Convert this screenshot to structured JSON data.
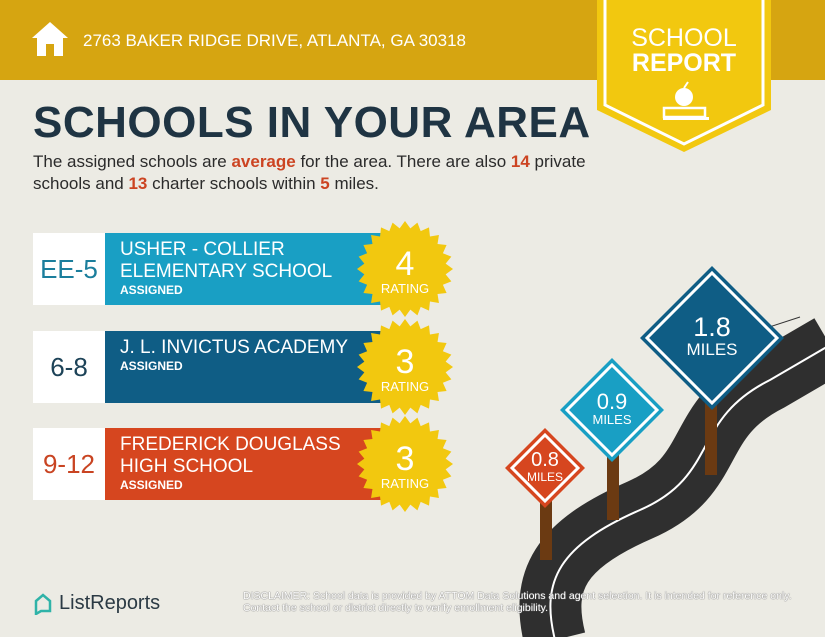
{
  "header": {
    "address": "2763 BAKER RIDGE DRIVE, ATLANTA, GA 30318",
    "badge_line1": "SCHOOL",
    "badge_line2": "REPORT"
  },
  "title": "SCHOOLS IN YOUR AREA",
  "intro": {
    "p1": "The assigned schools are ",
    "quality": "average",
    "p2": " for the area. There are also ",
    "private_count": "14",
    "p3": " private schools and ",
    "charter_count": "13",
    "p4": " charter schools within ",
    "radius": "5",
    "p5": " miles."
  },
  "schools": [
    {
      "grades": "EE-5",
      "name": "USHER - COLLIER ELEMENTARY SCHOOL",
      "status": "ASSIGNED",
      "rating": "4",
      "rating_label": "RATING",
      "color": "#199fc4",
      "grade_color": "#1b7e9c"
    },
    {
      "grades": "6-8",
      "name": "J. L. INVICTUS ACADEMY",
      "status": "ASSIGNED",
      "rating": "3",
      "rating_label": "RATING",
      "color": "#0f5d85",
      "grade_color": "#1d4358"
    },
    {
      "grades": "9-12",
      "name": "FREDERICK DOUGLASS HIGH SCHOOL",
      "status": "ASSIGNED",
      "rating": "3",
      "rating_label": "RATING",
      "color": "#d6461f",
      "grade_color": "#c94422"
    }
  ],
  "distances": [
    {
      "value": "0.8",
      "unit": "MILES",
      "color": "#d6461f"
    },
    {
      "value": "0.9",
      "unit": "MILES",
      "color": "#199fc4"
    },
    {
      "value": "1.8",
      "unit": "MILES",
      "color": "#0f5d85"
    }
  ],
  "footer": {
    "brand": "ListReports",
    "disclaimer_label": "DISCLAIMER:",
    "disclaimer": " School data is provided by ATTOM Data Solutions and agent selection. It is intended for reference only. Contact the school or district directly to verify enrollment eligibility."
  },
  "colors": {
    "header": "#d6a511",
    "badge": "#f2c80f",
    "seal": "#f2c80f",
    "title": "#1f3443",
    "highlight": "#cc4422",
    "background": "#ecebe4"
  }
}
